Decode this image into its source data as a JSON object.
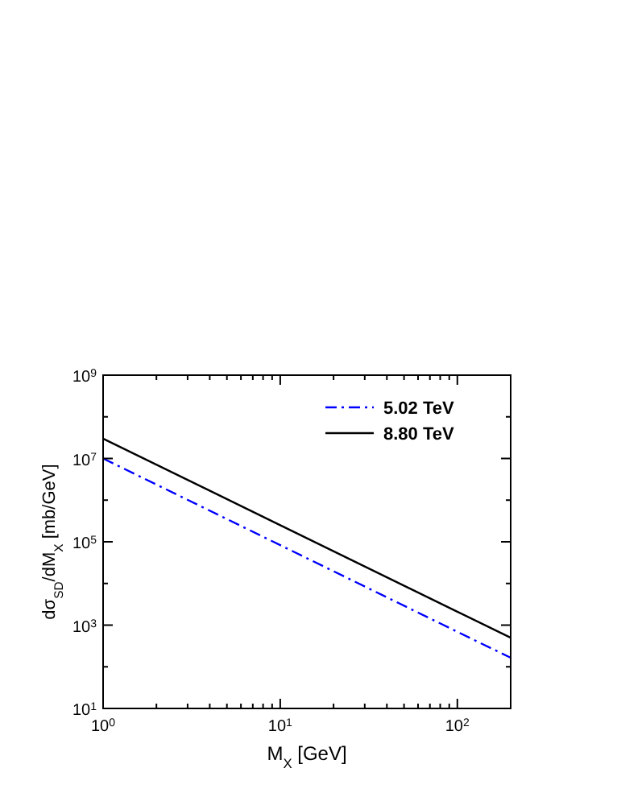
{
  "chart_data": {
    "type": "line",
    "xlabel": "M$_{X}$ [GeV]",
    "ylabel": "dσ$_{SD}$/dM$_{X}$ [mb/GeV]",
    "log": "xy",
    "xlim": [
      1,
      200
    ],
    "ylim": [
      10,
      1000000000
    ],
    "xticks": [
      {
        "value": 1,
        "label": "10$^{0}$"
      },
      {
        "value": 2,
        "label": null
      },
      {
        "value": 3,
        "label": null
      },
      {
        "value": 4,
        "label": null
      },
      {
        "value": 5,
        "label": null
      },
      {
        "value": 6,
        "label": null
      },
      {
        "value": 7,
        "label": null
      },
      {
        "value": 8,
        "label": null
      },
      {
        "value": 9,
        "label": null
      },
      {
        "value": 10,
        "label": "10$^{1}$"
      },
      {
        "value": 20,
        "label": null
      },
      {
        "value": 30,
        "label": null
      },
      {
        "value": 40,
        "label": null
      },
      {
        "value": 50,
        "label": null
      },
      {
        "value": 60,
        "label": null
      },
      {
        "value": 70,
        "label": null
      },
      {
        "value": 80,
        "label": null
      },
      {
        "value": 90,
        "label": null
      },
      {
        "value": 100,
        "label": "10$^{2}$"
      },
      {
        "value": 200,
        "label": null
      }
    ],
    "yticks": [
      {
        "value": 10,
        "label": "10$^{1}$"
      },
      {
        "value": 100,
        "label": null
      },
      {
        "value": 1000,
        "label": "10$^{3}$"
      },
      {
        "value": 10000,
        "label": null
      },
      {
        "value": 100000,
        "label": "10$^{5}$"
      },
      {
        "value": 1000000,
        "label": null
      },
      {
        "value": 10000000,
        "label": "10$^{7}$"
      },
      {
        "value": 100000000,
        "label": null
      },
      {
        "value": 1000000000,
        "label": "10$^{9}$"
      }
    ],
    "grid": false,
    "legend": "top right",
    "series": [
      {
        "name": "5.02 TeV",
        "color": "#0000ff",
        "line_style": "dashed",
        "x": [
          1,
          10,
          100,
          200
        ],
        "values": [
          10000000,
          83000,
          690,
          165
        ]
      },
      {
        "name": "8.80 TeV",
        "color": "#000000",
        "line_style": "solid",
        "x": [
          1,
          10,
          100,
          200
        ],
        "values": [
          30000000,
          250000,
          2100,
          500
        ]
      }
    ]
  }
}
